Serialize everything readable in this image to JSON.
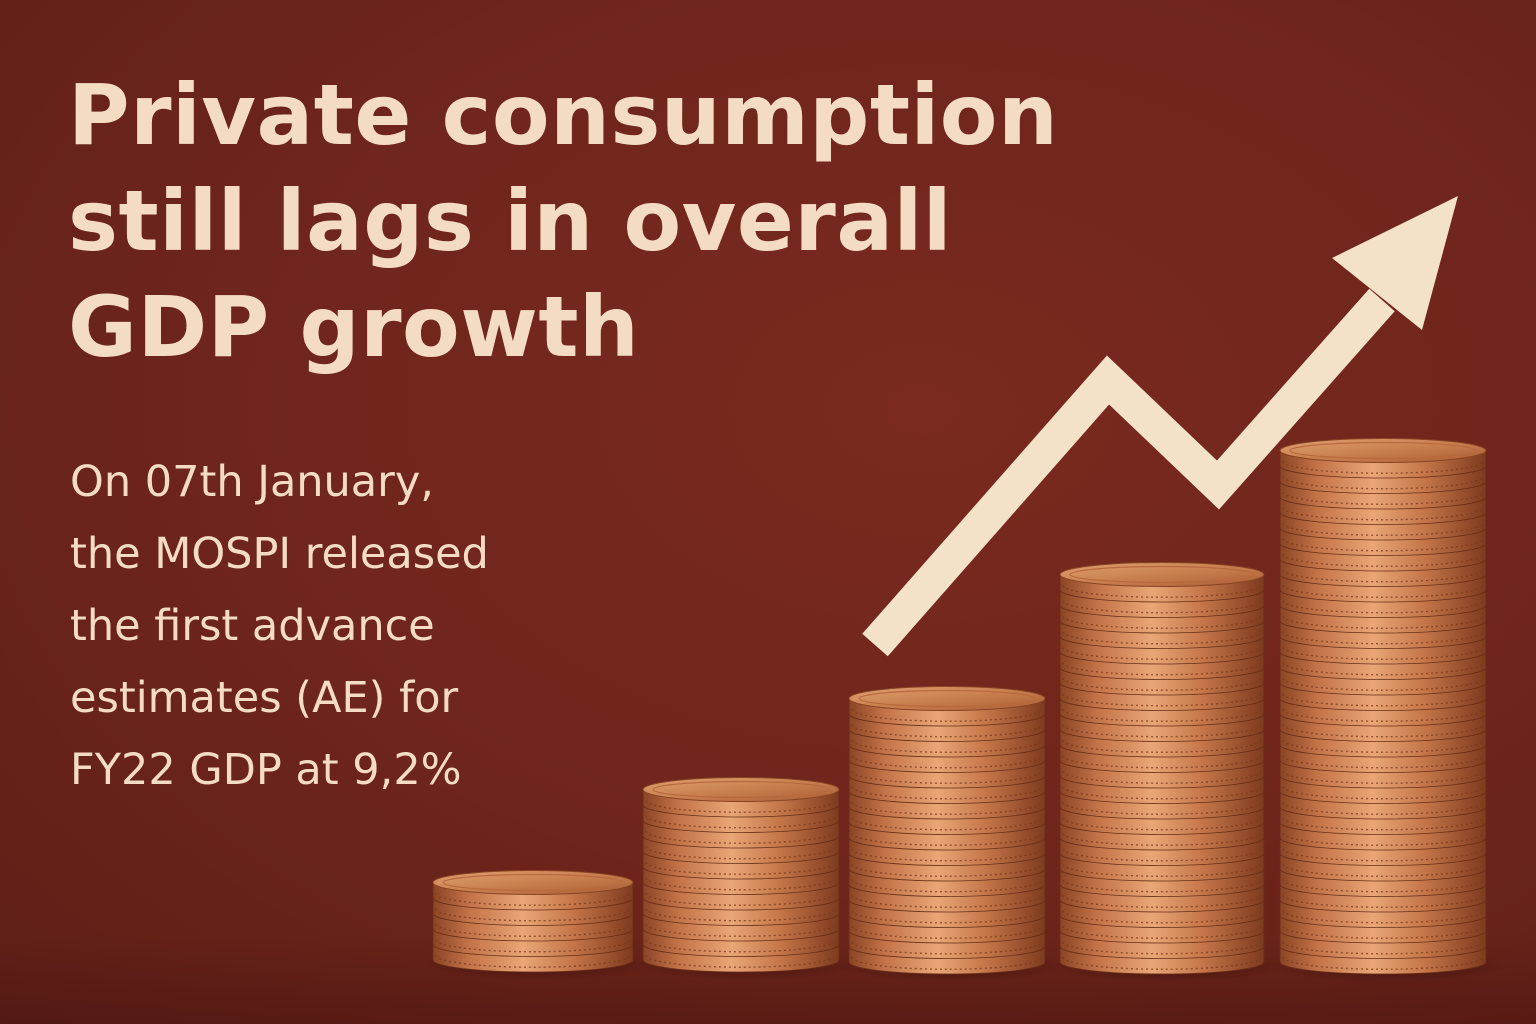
{
  "headline": {
    "line1": "Private consumption",
    "line2": "still lags in overall",
    "line3": "GDP growth"
  },
  "body": {
    "line1": "On 07th January,",
    "line2": "the MOSPI released",
    "line3": "the first advance",
    "line4": "estimates (AE) for",
    "line5": "FY22 GDP at 9,2%"
  },
  "colors": {
    "background": "#6e251b",
    "text": "#f4dcc2",
    "arrow": "#f3e2c8",
    "coin": "#c77a4a"
  },
  "icons": {
    "arrow": "trend-up-arrow-icon",
    "coins": "coin-stack-icon"
  }
}
